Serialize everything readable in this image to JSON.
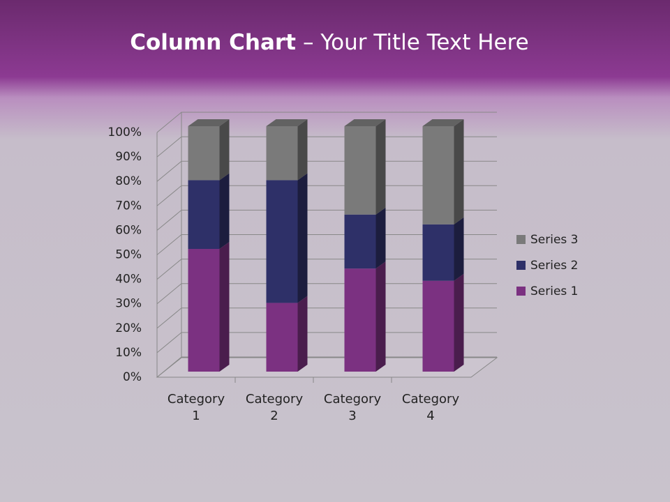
{
  "chart_data": {
    "type": "stacked_bar_3d",
    "title_parts": [
      "Column Chart",
      "– Your Title Text Here"
    ],
    "categories": [
      "Category 1",
      "Category 2",
      "Category 3",
      "Category 4"
    ],
    "series": [
      {
        "name": "Series 1",
        "color": "#7b3181",
        "values": [
          50,
          28,
          42,
          37
        ]
      },
      {
        "name": "Series 2",
        "color": "#2e3068",
        "values": [
          28,
          50,
          22,
          23
        ]
      },
      {
        "name": "Series 3",
        "color": "#7a7a7a",
        "values": [
          22,
          22,
          36,
          40
        ]
      }
    ],
    "ylim": [
      0,
      100
    ],
    "yticks": [
      {
        "value": 0,
        "label": "0%"
      },
      {
        "value": 10,
        "label": "10%"
      },
      {
        "value": 20,
        "label": "20%"
      },
      {
        "value": 30,
        "label": "30%"
      },
      {
        "value": 40,
        "label": "40%"
      },
      {
        "value": 50,
        "label": "50%"
      },
      {
        "value": 60,
        "label": "60%"
      },
      {
        "value": 70,
        "label": "70%"
      },
      {
        "value": 80,
        "label": "80%"
      },
      {
        "value": 90,
        "label": "90%"
      },
      {
        "value": 100,
        "label": "100%"
      }
    ],
    "grid": true,
    "legend": "right"
  }
}
